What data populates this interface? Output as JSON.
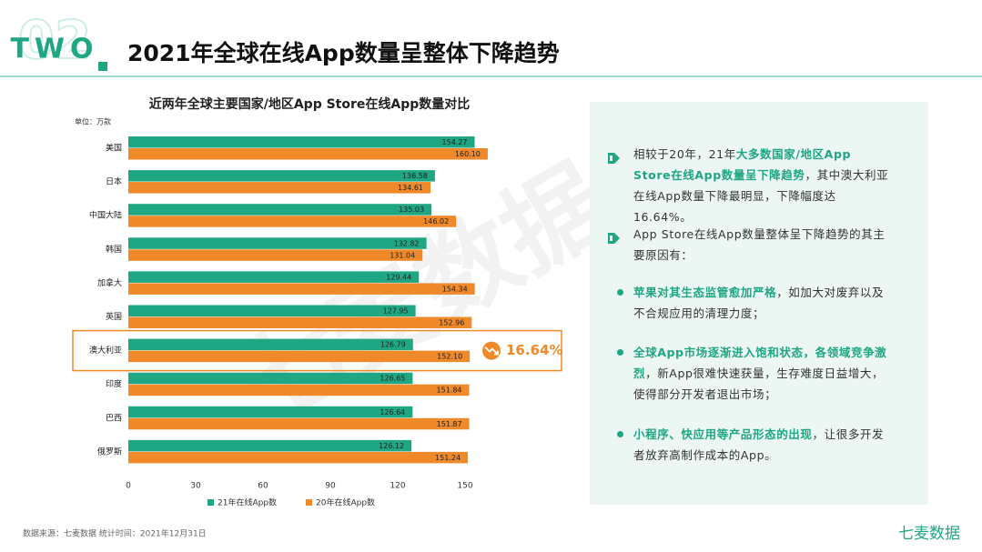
{
  "header": {
    "number": "02",
    "label": "TWO",
    "title": "2021年全球在线App数量呈整体下降趋势"
  },
  "chart_data": {
    "type": "hbar",
    "title": "近两年全球主要国家/地区App Store在线App数量对比",
    "unit": "单位：万款",
    "categories": [
      "美国",
      "日本",
      "中国大陆",
      "韩国",
      "加拿大",
      "英国",
      "澳大利亚",
      "印度",
      "巴西",
      "俄罗斯"
    ],
    "series": [
      {
        "name": "21年在线App数",
        "color": "#1fa683",
        "values": [
          154.27,
          136.58,
          135.03,
          132.82,
          129.44,
          127.95,
          126.79,
          126.65,
          126.64,
          126.12
        ],
        "value_labels": [
          "154.27",
          "136.58",
          "135.03",
          "132.82",
          "129.44",
          "127.95",
          "126.79",
          "126.65",
          "126.64",
          "126.12"
        ]
      },
      {
        "name": "20年在线App数",
        "color": "#f0892a",
        "values": [
          160.1,
          134.61,
          146.02,
          131.04,
          154.34,
          152.96,
          152.1,
          151.84,
          151.87,
          151.24
        ],
        "value_labels": [
          "160.10",
          "134.61",
          "146.02",
          "131.04",
          "154.34",
          "152.96",
          "152.10",
          "151.84",
          "151.87",
          "151.24"
        ]
      }
    ],
    "xlim": [
      0,
      150
    ],
    "xticks": [
      0,
      30,
      60,
      90,
      120,
      150
    ],
    "grid": false,
    "annotation": "16.64%"
  },
  "panel": {
    "items": [
      {
        "kind": "arrow",
        "segments": [
          {
            "text": "相较于20年，21年"
          },
          {
            "text": "大多数国家/地区App Store在线App数量呈下降趋势",
            "bold": true
          },
          {
            "text": "，其中澳大利亚在线App数量下降最明显，下降幅度达16.64%。"
          }
        ]
      },
      {
        "kind": "arrow",
        "segments": [
          {
            "text": "App Store在线App数量整体呈下降趋势的其主要原因有："
          }
        ]
      },
      {
        "kind": "dot",
        "segments": [
          {
            "text": "苹果对其生态监管愈加严格",
            "bold": true
          },
          {
            "text": "，如加大对废弃以及不合规应用的清理力度；"
          }
        ]
      },
      {
        "kind": "dot",
        "segments": [
          {
            "text": "全球App市场逐渐进入饱和状态，各领域竞争激烈",
            "bold": true
          },
          {
            "text": "，新App很难快速获量，生存难度日益增大，使得部分开发者退出市场；"
          }
        ]
      },
      {
        "kind": "dot",
        "segments": [
          {
            "text": "小程序、快应用等产品形态的出现",
            "bold": true
          },
          {
            "text": "，让很多开发者放弃高制作成本的App。"
          }
        ]
      }
    ]
  },
  "watermark": "七麦数据",
  "footer": {
    "source": "数据来源：七麦数据  统计时间：2021年12月31日",
    "brand": "七麦数据"
  }
}
